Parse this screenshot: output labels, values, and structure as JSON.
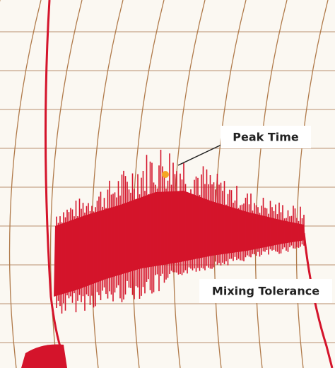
{
  "annotations": [
    {
      "label": "Peak Time"
    },
    {
      "label": "Mixing Tolerance"
    }
  ]
}
